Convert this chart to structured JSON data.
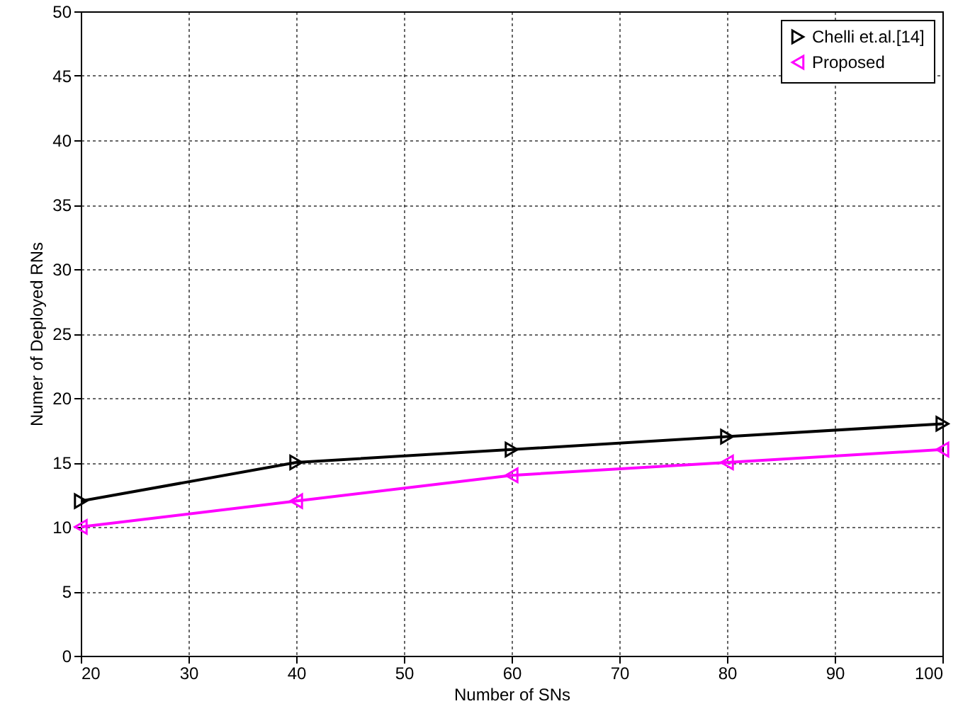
{
  "chart_data": {
    "type": "line",
    "xlabel": "Number of SNs",
    "ylabel": "Numer of Deployed RNs",
    "x": [
      20,
      40,
      60,
      80,
      100
    ],
    "series": [
      {
        "name": "Chelli et.al.[14]",
        "color": "#000000",
        "values": [
          12,
          15,
          16,
          17,
          18
        ]
      },
      {
        "name": "Proposed",
        "color": "#ff00ff",
        "values": [
          10,
          12,
          14,
          15,
          16
        ]
      }
    ],
    "xlim": [
      20,
      100
    ],
    "xticks": [
      20,
      30,
      40,
      50,
      60,
      70,
      80,
      90,
      100
    ],
    "ylim": [
      0,
      50
    ],
    "yticks": [
      0,
      5,
      10,
      15,
      20,
      25,
      30,
      35,
      40,
      45,
      50
    ],
    "grid": true,
    "legend": "top right",
    "marker": "triangle",
    "line_style": "solid"
  }
}
